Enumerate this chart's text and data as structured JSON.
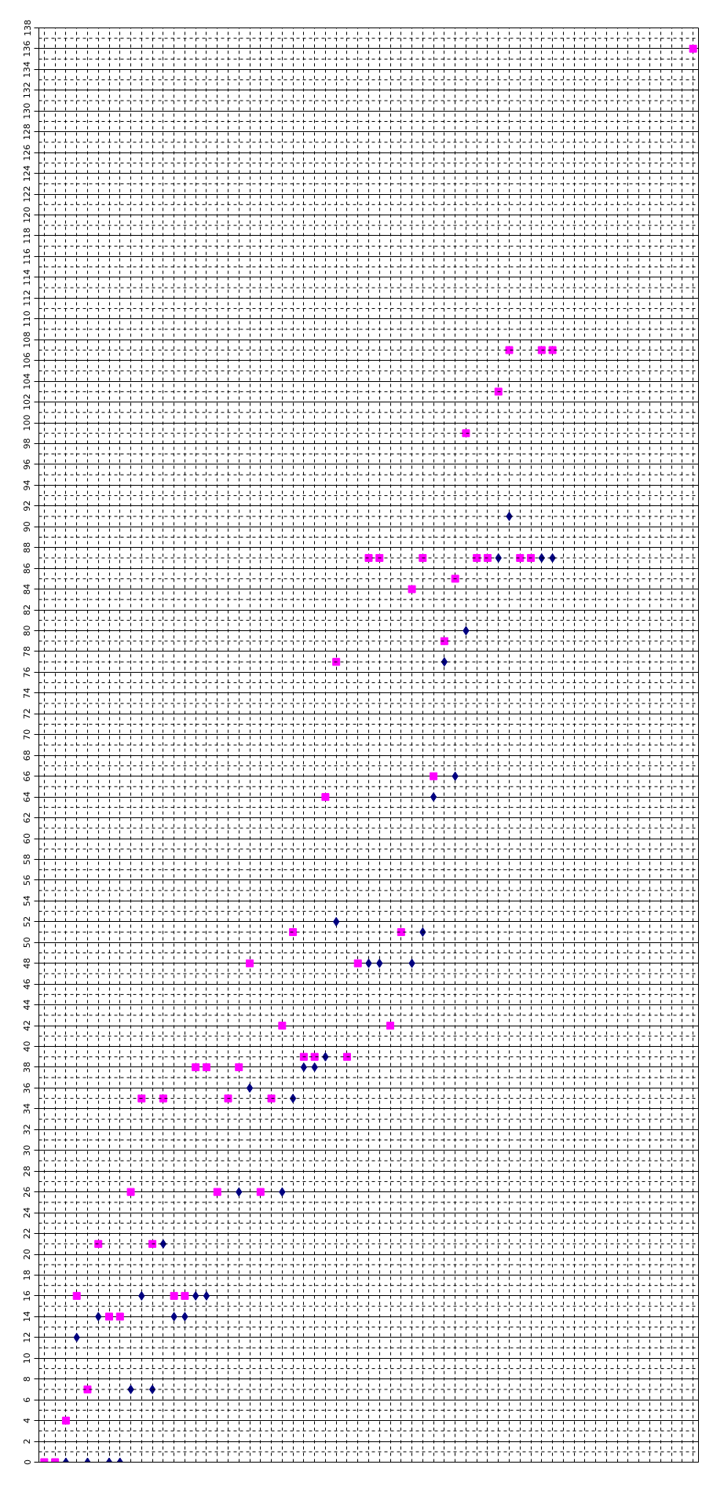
{
  "chart_data": {
    "type": "scatter",
    "categories": [
      null,
      null,
      null,
      null,
      null,
      null,
      null,
      null,
      null,
      null,
      null,
      null,
      null,
      null,
      null,
      null,
      null,
      null,
      null,
      null,
      null,
      null,
      null,
      null,
      null,
      null,
      null,
      null,
      null,
      null,
      null,
      null,
      null,
      null,
      null,
      null,
      null,
      null,
      null,
      null,
      null,
      null,
      null,
      null,
      null,
      null,
      null,
      null,
      null,
      null,
      null,
      null,
      null,
      null,
      null,
      null,
      null,
      null,
      null,
      null,
      null
    ],
    "series": [
      {
        "color": "#000080",
        "marker": "diamond",
        "values": [
          null,
          null,
          0,
          12,
          0,
          14,
          0,
          0,
          7,
          16,
          7,
          21,
          14,
          14,
          16,
          16,
          null,
          null,
          26,
          36,
          null,
          null,
          26,
          35,
          38,
          38,
          39,
          52,
          null,
          null,
          48,
          48,
          null,
          null,
          48,
          51,
          64,
          77,
          66,
          80,
          null,
          null,
          87,
          91,
          null,
          null,
          87,
          87,
          null,
          null,
          null,
          null,
          null,
          null,
          null,
          null,
          null,
          null,
          null,
          null,
          null
        ]
      },
      {
        "color": "#ff00ff",
        "marker": "square",
        "values": [
          0,
          0,
          4,
          16,
          7,
          21,
          14,
          14,
          26,
          35,
          21,
          35,
          16,
          16,
          38,
          38,
          26,
          35,
          38,
          48,
          26,
          35,
          42,
          51,
          39,
          39,
          64,
          77,
          39,
          48,
          87,
          87,
          42,
          51,
          84,
          87,
          66,
          79,
          85,
          99,
          87,
          87,
          103,
          107,
          87,
          87,
          107,
          107,
          null,
          null,
          null,
          null,
          null,
          null,
          null,
          null,
          null,
          null,
          null,
          null,
          136
        ]
      }
    ],
    "ylim": [
      0,
      138
    ],
    "yticks": [
      0,
      2,
      4,
      6,
      8,
      10,
      12,
      14,
      16,
      18,
      20,
      22,
      24,
      26,
      28,
      30,
      32,
      34,
      36,
      38,
      40,
      42,
      44,
      46,
      48,
      50,
      52,
      54,
      56,
      58,
      60,
      62,
      64,
      66,
      68,
      70,
      72,
      74,
      76,
      78,
      80,
      82,
      84,
      86,
      88,
      90,
      92,
      94,
      96,
      98,
      100,
      102,
      104,
      106,
      108,
      110,
      112,
      114,
      116,
      118,
      120,
      122,
      124,
      126,
      128,
      130,
      132,
      134,
      136,
      138
    ],
    "grid": true
  }
}
